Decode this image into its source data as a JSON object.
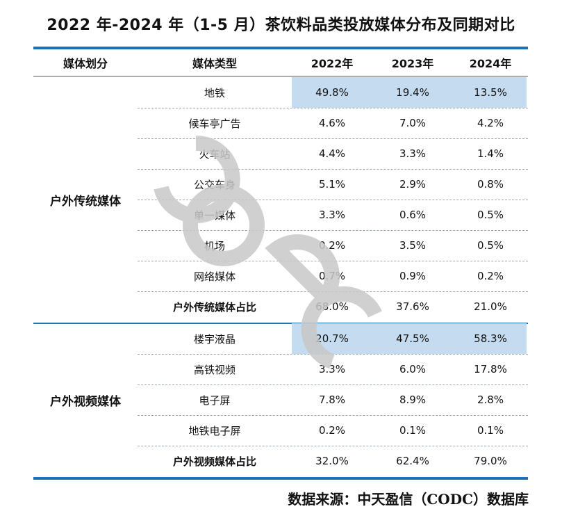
{
  "title": "2022 年-2024 年（1-5 月）茶饮料品类投放媒体分布及同期对比",
  "headers": [
    "媒体划分",
    "媒体类型",
    "2022年",
    "2023年",
    "2024年"
  ],
  "groups": [
    {
      "name": "户外传统媒体",
      "rows": [
        {
          "type": "地铁",
          "values": [
            "49.8%",
            "19.4%",
            "13.5%"
          ]
        },
        {
          "type": "候车亭广告",
          "values": [
            "4.6%",
            "7.0%",
            "4.2%"
          ]
        },
        {
          "type": "火车站",
          "values": [
            "4.4%",
            "3.3%",
            "1.4%"
          ]
        },
        {
          "type": "公交车身",
          "values": [
            "5.1%",
            "2.9%",
            "0.8%"
          ]
        },
        {
          "type": "单一媒体",
          "values": [
            "3.3%",
            "0.6%",
            "0.5%"
          ]
        },
        {
          "type": "机场",
          "values": [
            "0.2%",
            "3.5%",
            "0.5%"
          ]
        },
        {
          "type": "网络媒体",
          "values": [
            "0.7%",
            "0.9%",
            "0.2%"
          ]
        }
      ],
      "summary": {
        "label": "户外传统媒体占比",
        "values": [
          "68.0%",
          "37.6%",
          "21.0%"
        ]
      }
    },
    {
      "name": "户外视频媒体",
      "rows": [
        {
          "type": "楼宇液晶",
          "values": [
            "20.7%",
            "47.5%",
            "58.3%"
          ]
        },
        {
          "type": "高铁视频",
          "values": [
            "3.3%",
            "6.0%",
            "17.8%"
          ]
        },
        {
          "type": "电子屏",
          "values": [
            "7.8%",
            "8.9%",
            "2.8%"
          ]
        },
        {
          "type": "地铁电子屏",
          "values": [
            "0.2%",
            "0.1%",
            "0.1%"
          ]
        }
      ],
      "summary": {
        "label": "户外视频媒体占比",
        "values": [
          "32.0%",
          "62.4%",
          "79.0%"
        ]
      }
    }
  ],
  "watermark": "CODC",
  "source": "数据来源：中天盈信（CODC）数据库",
  "colors": {
    "rule": "#1f6fb5",
    "highlight": "#c5dcf0",
    "watermark": "#c8c8c8"
  }
}
